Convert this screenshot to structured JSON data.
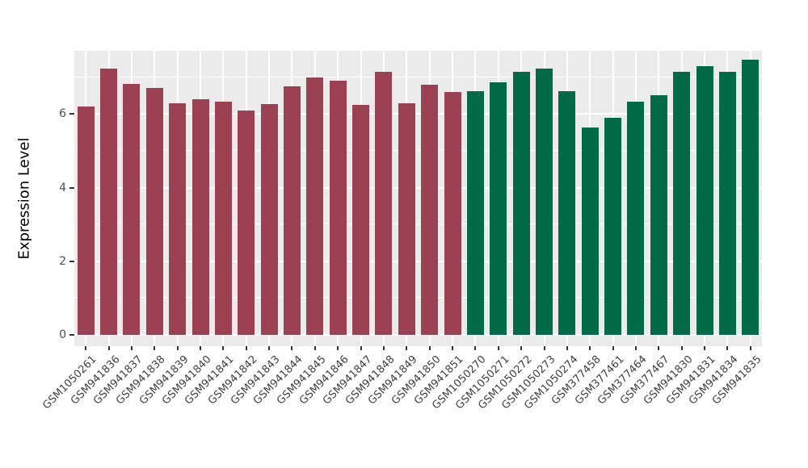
{
  "chart_data": {
    "type": "bar",
    "title": "",
    "xlabel": "",
    "ylabel": "Expression Level",
    "yticks": [
      0,
      2,
      4,
      6
    ],
    "minor_gridlines": [
      1,
      3,
      5,
      7
    ],
    "ylim": [
      0,
      7.72
    ],
    "grid": "on",
    "legend_position": "none",
    "panel_background": "#EBEBEB",
    "gridline_color": "#FFFFFF",
    "axis_text_color": "#4D4D4D",
    "categories": [
      "GSM1050261",
      "GSM941836",
      "GSM941837",
      "GSM941838",
      "GSM941839",
      "GSM941840",
      "GSM941841",
      "GSM941842",
      "GSM941843",
      "GSM941844",
      "GSM941845",
      "GSM941846",
      "GSM941847",
      "GSM941848",
      "GSM941849",
      "GSM941850",
      "GSM941851",
      "GSM1050270",
      "GSM1050271",
      "GSM1050272",
      "GSM1050273",
      "GSM1050274",
      "GSM377458",
      "GSM377461",
      "GSM377464",
      "GSM377467",
      "GSM941830",
      "GSM941831",
      "GSM941834",
      "GSM941835"
    ],
    "values": [
      6.2,
      7.24,
      6.83,
      6.7,
      6.3,
      6.4,
      6.34,
      6.09,
      6.28,
      6.75,
      7.0,
      6.91,
      6.26,
      7.16,
      6.29,
      6.8,
      6.6,
      6.63,
      6.87,
      7.14,
      7.24,
      6.62,
      5.63,
      5.9,
      6.34,
      6.52,
      7.15,
      7.31,
      7.16,
      7.48
    ],
    "bar_groups": [
      "group1",
      "group1",
      "group1",
      "group1",
      "group1",
      "group1",
      "group1",
      "group1",
      "group1",
      "group1",
      "group1",
      "group1",
      "group1",
      "group1",
      "group1",
      "group1",
      "group1",
      "group2",
      "group2",
      "group2",
      "group2",
      "group2",
      "group2",
      "group2",
      "group2",
      "group2",
      "group2",
      "group2",
      "group2",
      "group2"
    ],
    "group_colors": {
      "group1": "#9C4151",
      "group2": "#036A48"
    }
  }
}
